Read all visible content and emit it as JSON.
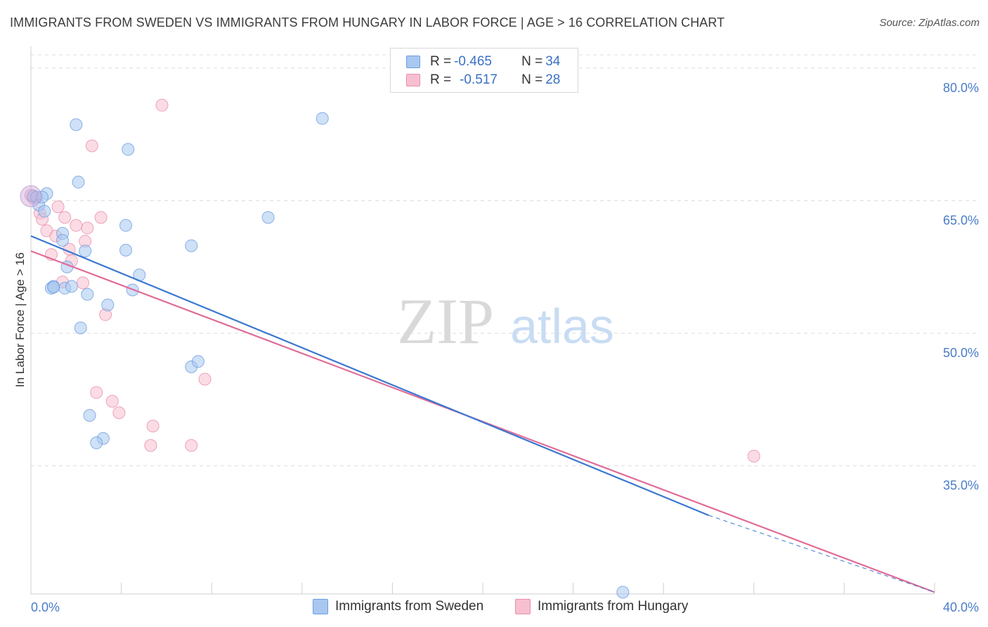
{
  "title": "IMMIGRANTS FROM SWEDEN VS IMMIGRANTS FROM HUNGARY IN LABOR FORCE | AGE > 16 CORRELATION CHART",
  "source": "Source: ZipAtlas.com",
  "watermark": {
    "zip": "ZIP",
    "atlas": "atlas"
  },
  "legend": {
    "series1": {
      "r_label": "R = ",
      "r_value": "-0.465",
      "n_label": "N = ",
      "n_value": "34"
    },
    "series2": {
      "r_label": "R = ",
      "r_value": "-0.517",
      "n_label": "N = ",
      "n_value": "28"
    }
  },
  "bottom_legend": {
    "series1": "Immigrants from Sweden",
    "series2": "Immigrants from Hungary"
  },
  "colors": {
    "sweden_fill": "#a8c8f0",
    "sweden_stroke": "#6f9ee0",
    "sweden_line": "#3a78d0",
    "hungary_fill": "#f7bfd0",
    "hungary_stroke": "#ea8fab",
    "hungary_line": "#e06c98",
    "grid": "#dcdcdc",
    "tick_text": "#4a7cc9"
  },
  "chart_data": {
    "type": "scatter",
    "title": "IMMIGRANTS FROM SWEDEN VS IMMIGRANTS FROM HUNGARY IN LABOR FORCE | AGE > 16 CORRELATION CHART",
    "xlabel": "",
    "ylabel": "In Labor Force | Age > 16",
    "xlim": [
      0,
      40
    ],
    "ylim": [
      20.5,
      81.5
    ],
    "x_tick_labels": [
      "0.0%",
      "40.0%"
    ],
    "y_ticks": [
      35,
      50,
      65,
      80
    ],
    "y_tick_labels": [
      "35.0%",
      "50.0%",
      "65.0%",
      "80.0%"
    ],
    "grid": true,
    "series": [
      {
        "name": "Immigrants from Sweden",
        "r": -0.465,
        "n": 34,
        "points": [
          [
            0.1,
            65.5
          ],
          [
            0.25,
            65.4
          ],
          [
            0.35,
            64.5
          ],
          [
            0.7,
            65.8
          ],
          [
            0.6,
            63.8
          ],
          [
            2.0,
            73.6
          ],
          [
            2.1,
            67.1
          ],
          [
            4.3,
            70.8
          ],
          [
            12.9,
            74.3
          ],
          [
            1.4,
            61.3
          ],
          [
            1.4,
            60.5
          ],
          [
            2.4,
            59.3
          ],
          [
            4.2,
            62.2
          ],
          [
            4.2,
            59.4
          ],
          [
            7.1,
            59.9
          ],
          [
            10.5,
            63.1
          ],
          [
            1.6,
            57.5
          ],
          [
            4.8,
            56.6
          ],
          [
            0.9,
            55.1
          ],
          [
            1.0,
            55.3
          ],
          [
            1.5,
            55.1
          ],
          [
            1.8,
            55.3
          ],
          [
            2.5,
            54.4
          ],
          [
            4.5,
            54.9
          ],
          [
            3.4,
            53.2
          ],
          [
            2.2,
            50.6
          ],
          [
            7.1,
            46.2
          ],
          [
            7.4,
            46.8
          ],
          [
            2.6,
            40.7
          ],
          [
            3.2,
            38.1
          ],
          [
            2.9,
            37.6
          ],
          [
            26.2,
            20.7
          ],
          [
            0.5,
            65.4
          ],
          [
            1.0,
            55.2
          ]
        ],
        "trend": {
          "x": [
            0,
            30.0
          ],
          "y": [
            61.0,
            29.4
          ]
        },
        "trend_dashed": {
          "x": [
            30.0,
            40.0
          ],
          "y": [
            29.4,
            20.7
          ]
        }
      },
      {
        "name": "Immigrants from Hungary",
        "r": -0.517,
        "n": 28,
        "points": [
          [
            5.8,
            75.8
          ],
          [
            2.7,
            71.2
          ],
          [
            1.2,
            64.3
          ],
          [
            0.4,
            63.6
          ],
          [
            0.5,
            62.9
          ],
          [
            1.5,
            63.1
          ],
          [
            3.1,
            63.1
          ],
          [
            2.0,
            62.2
          ],
          [
            2.5,
            61.9
          ],
          [
            0.7,
            61.6
          ],
          [
            1.1,
            61.0
          ],
          [
            2.4,
            60.4
          ],
          [
            1.7,
            59.5
          ],
          [
            0.9,
            58.9
          ],
          [
            1.8,
            58.2
          ],
          [
            1.4,
            55.8
          ],
          [
            2.3,
            55.7
          ],
          [
            3.3,
            52.1
          ],
          [
            7.7,
            44.8
          ],
          [
            2.9,
            43.3
          ],
          [
            3.6,
            42.3
          ],
          [
            3.9,
            41.0
          ],
          [
            5.4,
            39.5
          ],
          [
            5.3,
            37.3
          ],
          [
            7.1,
            37.3
          ],
          [
            32.0,
            36.1
          ],
          [
            0.1,
            65.3
          ],
          [
            0.0,
            65.6
          ]
        ],
        "trend": {
          "x": [
            0,
            40.0
          ],
          "y": [
            59.3,
            20.7
          ]
        }
      }
    ]
  }
}
